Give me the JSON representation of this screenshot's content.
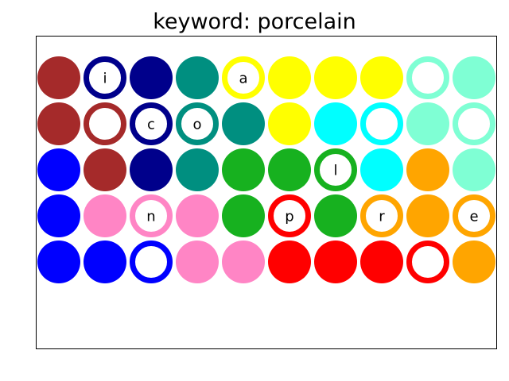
{
  "title": "keyword: porcelain",
  "palette": {
    "brown": "#a52a2a",
    "navy": "#00008b",
    "teal": "#008f80",
    "yellow": "#ffff00",
    "aquamarine": "#7fffd4",
    "cyan": "#00ffff",
    "blue": "#0000ff",
    "green": "#17b11f",
    "pink": "#ff85c5",
    "orange": "#ffa500",
    "red": "#ff0000"
  },
  "board": {
    "rows": [
      [
        {
          "color": "brown",
          "style": "filled",
          "letter": ""
        },
        {
          "color": "navy",
          "style": "ring",
          "letter": "i"
        },
        {
          "color": "navy",
          "style": "filled",
          "letter": ""
        },
        {
          "color": "teal",
          "style": "filled",
          "letter": ""
        },
        {
          "color": "yellow",
          "style": "ring",
          "letter": "a"
        },
        {
          "color": "yellow",
          "style": "filled",
          "letter": ""
        },
        {
          "color": "yellow",
          "style": "filled",
          "letter": ""
        },
        {
          "color": "yellow",
          "style": "filled",
          "letter": ""
        },
        {
          "color": "aquamarine",
          "style": "ring",
          "letter": ""
        },
        {
          "color": "aquamarine",
          "style": "filled",
          "letter": ""
        }
      ],
      [
        {
          "color": "brown",
          "style": "filled",
          "letter": ""
        },
        {
          "color": "brown",
          "style": "ring",
          "letter": ""
        },
        {
          "color": "navy",
          "style": "ring",
          "letter": "c"
        },
        {
          "color": "teal",
          "style": "ring",
          "letter": "o"
        },
        {
          "color": "teal",
          "style": "filled",
          "letter": ""
        },
        {
          "color": "yellow",
          "style": "filled",
          "letter": ""
        },
        {
          "color": "cyan",
          "style": "filled",
          "letter": ""
        },
        {
          "color": "cyan",
          "style": "ring",
          "letter": ""
        },
        {
          "color": "aquamarine",
          "style": "filled",
          "letter": ""
        },
        {
          "color": "aquamarine",
          "style": "ring",
          "letter": ""
        }
      ],
      [
        {
          "color": "blue",
          "style": "filled",
          "letter": ""
        },
        {
          "color": "brown",
          "style": "filled",
          "letter": ""
        },
        {
          "color": "navy",
          "style": "filled",
          "letter": ""
        },
        {
          "color": "teal",
          "style": "filled",
          "letter": ""
        },
        {
          "color": "green",
          "style": "filled",
          "letter": ""
        },
        {
          "color": "green",
          "style": "filled",
          "letter": ""
        },
        {
          "color": "green",
          "style": "ring",
          "letter": "l"
        },
        {
          "color": "cyan",
          "style": "filled",
          "letter": ""
        },
        {
          "color": "orange",
          "style": "filled",
          "letter": ""
        },
        {
          "color": "aquamarine",
          "style": "filled",
          "letter": ""
        }
      ],
      [
        {
          "color": "blue",
          "style": "filled",
          "letter": ""
        },
        {
          "color": "pink",
          "style": "filled",
          "letter": ""
        },
        {
          "color": "pink",
          "style": "ring",
          "letter": "n"
        },
        {
          "color": "pink",
          "style": "filled",
          "letter": ""
        },
        {
          "color": "green",
          "style": "filled",
          "letter": ""
        },
        {
          "color": "red",
          "style": "ring",
          "letter": "p"
        },
        {
          "color": "green",
          "style": "filled",
          "letter": ""
        },
        {
          "color": "orange",
          "style": "ring",
          "letter": "r"
        },
        {
          "color": "orange",
          "style": "filled",
          "letter": ""
        },
        {
          "color": "orange",
          "style": "ring",
          "letter": "e"
        }
      ],
      [
        {
          "color": "blue",
          "style": "filled",
          "letter": ""
        },
        {
          "color": "blue",
          "style": "filled",
          "letter": ""
        },
        {
          "color": "blue",
          "style": "ring",
          "letter": ""
        },
        {
          "color": "pink",
          "style": "filled",
          "letter": ""
        },
        {
          "color": "pink",
          "style": "filled",
          "letter": ""
        },
        {
          "color": "red",
          "style": "filled",
          "letter": ""
        },
        {
          "color": "red",
          "style": "filled",
          "letter": ""
        },
        {
          "color": "red",
          "style": "filled",
          "letter": ""
        },
        {
          "color": "red",
          "style": "ring",
          "letter": ""
        },
        {
          "color": "orange",
          "style": "filled",
          "letter": ""
        }
      ]
    ]
  }
}
